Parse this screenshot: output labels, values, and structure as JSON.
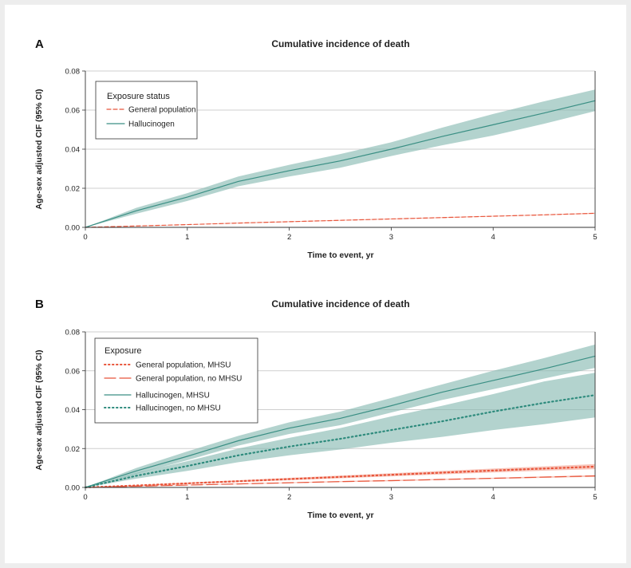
{
  "chart_data": [
    {
      "panel_label": "A",
      "type": "line",
      "title": "Cumulative incidence of death",
      "xlabel": "Time to event, yr",
      "ylabel": "Age-sex adjusted CIF (95% CI)",
      "xlim": [
        0,
        5
      ],
      "ylim": [
        0,
        0.08
      ],
      "xticks": [
        "0",
        "1",
        "2",
        "3",
        "4",
        "5"
      ],
      "yticks": [
        "0.00",
        "0.02",
        "0.04",
        "0.06",
        "0.08"
      ],
      "grid": true,
      "legend": {
        "title": "Exposure status",
        "position": "top-left",
        "entries": [
          "General population",
          "Hallucinogen"
        ]
      },
      "x": [
        0,
        0.5,
        1,
        1.5,
        2,
        2.5,
        3,
        3.5,
        4,
        4.5,
        5
      ],
      "series": [
        {
          "name": "General population",
          "color": "#e8553b",
          "style": "dashed",
          "values": [
            0,
            0.0007,
            0.0014,
            0.0022,
            0.0029,
            0.0036,
            0.0043,
            0.005,
            0.0057,
            0.0064,
            0.0072
          ],
          "ci_lower": [
            0,
            0.0006,
            0.0013,
            0.002,
            0.0027,
            0.0034,
            0.0041,
            0.0048,
            0.0055,
            0.0062,
            0.0069
          ],
          "ci_upper": [
            0,
            0.0008,
            0.0015,
            0.0024,
            0.0031,
            0.0038,
            0.0045,
            0.0052,
            0.0059,
            0.0066,
            0.0075
          ]
        },
        {
          "name": "Hallucinogen",
          "color": "#3a8f84",
          "style": "solid",
          "values": [
            0,
            0.0085,
            0.0155,
            0.0235,
            0.029,
            0.034,
            0.04,
            0.0465,
            0.0525,
            0.0585,
            0.0648
          ],
          "ci_lower": [
            0,
            0.007,
            0.0135,
            0.021,
            0.026,
            0.0305,
            0.0365,
            0.042,
            0.047,
            0.053,
            0.0595
          ],
          "ci_upper": [
            0,
            0.01,
            0.0175,
            0.026,
            0.032,
            0.0375,
            0.0435,
            0.051,
            0.058,
            0.0645,
            0.0705
          ]
        }
      ]
    },
    {
      "panel_label": "B",
      "type": "line",
      "title": "Cumulative incidence of death",
      "xlabel": "Time to event, yr",
      "ylabel": "Age-sex adjusted CIF (95% CI)",
      "xlim": [
        0,
        5
      ],
      "ylim": [
        0,
        0.08
      ],
      "xticks": [
        "0",
        "1",
        "2",
        "3",
        "4",
        "5"
      ],
      "yticks": [
        "0.00",
        "0.02",
        "0.04",
        "0.06",
        "0.08"
      ],
      "grid": true,
      "legend": {
        "title": "Exposure",
        "position": "top-left",
        "entries": [
          "General population, MHSU",
          "General population, no MHSU",
          "Hallucinogen, MHSU",
          "Hallucinogen, no MHSU"
        ]
      },
      "x": [
        0,
        0.5,
        1,
        1.5,
        2,
        2.5,
        3,
        3.5,
        4,
        4.5,
        5
      ],
      "series": [
        {
          "name": "General population, MHSU",
          "color": "#e8553b",
          "style": "dotted",
          "values": [
            0,
            0.001,
            0.0021,
            0.0032,
            0.0043,
            0.0054,
            0.0065,
            0.0076,
            0.0087,
            0.0097,
            0.0107
          ],
          "ci_lower": [
            0,
            0.0008,
            0.0017,
            0.0027,
            0.0037,
            0.0047,
            0.0057,
            0.0067,
            0.0077,
            0.0086,
            0.0094
          ],
          "ci_upper": [
            0,
            0.0012,
            0.0025,
            0.0037,
            0.0049,
            0.0061,
            0.0073,
            0.0085,
            0.0097,
            0.0108,
            0.012
          ]
        },
        {
          "name": "General population, no MHSU",
          "color": "#e8553b",
          "style": "longdash",
          "values": [
            0,
            0.0006,
            0.0012,
            0.0018,
            0.0024,
            0.003,
            0.0035,
            0.0041,
            0.0047,
            0.0053,
            0.0059
          ],
          "ci_lower": [
            0,
            0.0005,
            0.0011,
            0.0016,
            0.0022,
            0.0027,
            0.0032,
            0.0038,
            0.0044,
            0.0049,
            0.0055
          ],
          "ci_upper": [
            0,
            0.0007,
            0.0013,
            0.002,
            0.0026,
            0.0033,
            0.0038,
            0.0044,
            0.005,
            0.0057,
            0.0063
          ]
        },
        {
          "name": "Hallucinogen, MHSU",
          "color": "#3a8f84",
          "style": "solid",
          "values": [
            0,
            0.0085,
            0.016,
            0.024,
            0.0305,
            0.0355,
            0.042,
            0.049,
            0.055,
            0.061,
            0.0675
          ],
          "ci_lower": [
            0,
            0.007,
            0.014,
            0.0215,
            0.0275,
            0.032,
            0.0385,
            0.045,
            0.0505,
            0.056,
            0.0615
          ],
          "ci_upper": [
            0,
            0.01,
            0.0185,
            0.0265,
            0.0335,
            0.039,
            0.046,
            0.053,
            0.06,
            0.0665,
            0.0735
          ]
        },
        {
          "name": "Hallucinogen, no MHSU",
          "color": "#2e8b7d",
          "style": "dotted",
          "values": [
            0,
            0.006,
            0.011,
            0.0165,
            0.021,
            0.025,
            0.0295,
            0.034,
            0.039,
            0.0435,
            0.0475
          ],
          "ci_lower": [
            0,
            0.0045,
            0.0085,
            0.013,
            0.0165,
            0.0195,
            0.023,
            0.026,
            0.0295,
            0.0325,
            0.036
          ],
          "ci_upper": [
            0,
            0.0075,
            0.0135,
            0.02,
            0.0255,
            0.0305,
            0.0365,
            0.042,
            0.048,
            0.0545,
            0.059
          ]
        }
      ]
    }
  ]
}
